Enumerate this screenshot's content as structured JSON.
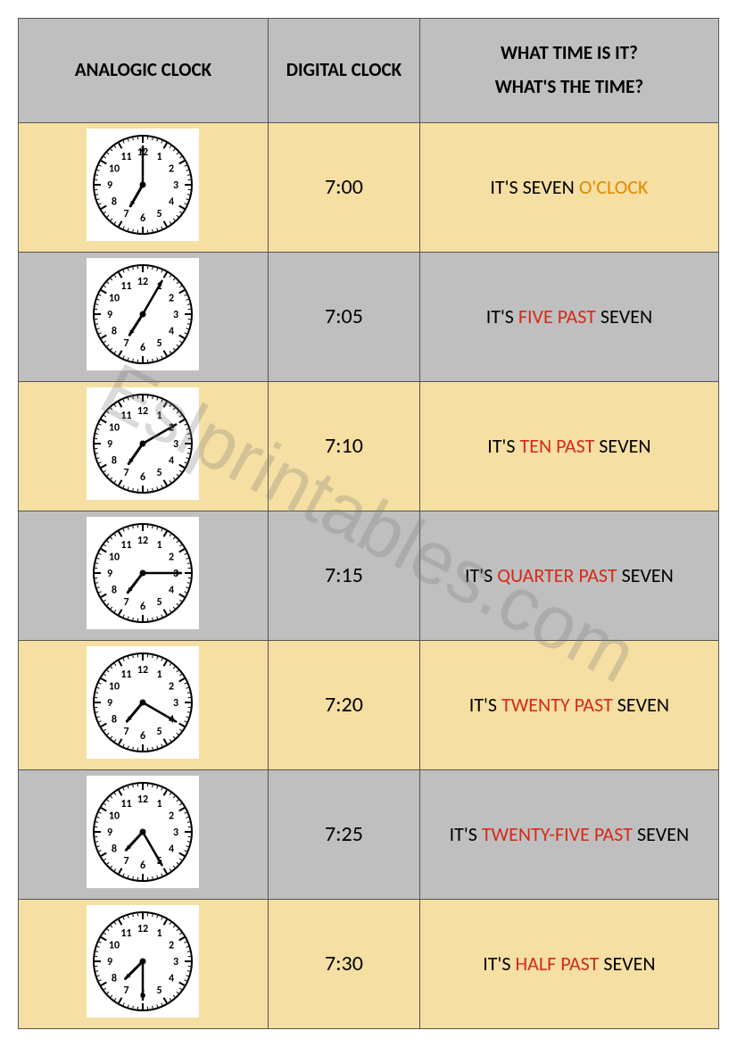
{
  "watermark": "Eslprintables.com",
  "headers": {
    "analog": "ANALOGIC CLOCK",
    "digital": "DIGITAL CLOCK",
    "text_line1": "WHAT TIME IS IT?",
    "text_line2": "WHAT'S THE TIME?"
  },
  "clock_style": {
    "face_fill": "#ffffff",
    "face_stroke": "#000000",
    "tick_color": "#000000",
    "number_color": "#000000",
    "hand_color": "#000000",
    "size": 118
  },
  "row_colors": {
    "yellow": "#f6dfa2",
    "grey": "#bfbfbf"
  },
  "rows": [
    {
      "bg": "yellow",
      "hour": 7,
      "minute": 0,
      "digital": "7:00",
      "phrase": [
        {
          "t": "IT'S SEVEN ",
          "c": "#000000"
        },
        {
          "t": "O'CLOCK",
          "c": "#e08a00"
        }
      ]
    },
    {
      "bg": "grey",
      "hour": 7,
      "minute": 5,
      "digital": "7:05",
      "phrase": [
        {
          "t": "IT'S ",
          "c": "#000000"
        },
        {
          "t": "FIVE PAST",
          "c": "#d52a1a"
        },
        {
          "t": " SEVEN",
          "c": "#000000"
        }
      ]
    },
    {
      "bg": "yellow",
      "hour": 7,
      "minute": 10,
      "digital": "7:10",
      "phrase": [
        {
          "t": "IT'S ",
          "c": "#000000"
        },
        {
          "t": "TEN PAST",
          "c": "#d52a1a"
        },
        {
          "t": " SEVEN",
          "c": "#000000"
        }
      ]
    },
    {
      "bg": "grey",
      "hour": 7,
      "minute": 15,
      "digital": "7:15",
      "phrase": [
        {
          "t": "IT'S ",
          "c": "#000000"
        },
        {
          "t": "QUARTER PAST",
          "c": "#d52a1a"
        },
        {
          "t": " SEVEN",
          "c": "#000000"
        }
      ]
    },
    {
      "bg": "yellow",
      "hour": 7,
      "minute": 20,
      "digital": "7:20",
      "phrase": [
        {
          "t": "IT'S ",
          "c": "#000000"
        },
        {
          "t": "TWENTY PAST",
          "c": "#d52a1a"
        },
        {
          "t": " SEVEN",
          "c": "#000000"
        }
      ]
    },
    {
      "bg": "grey",
      "hour": 7,
      "minute": 25,
      "digital": "7:25",
      "phrase": [
        {
          "t": "IT'S ",
          "c": "#000000"
        },
        {
          "t": "TWENTY-FIVE PAST",
          "c": "#d52a1a"
        },
        {
          "t": " SEVEN",
          "c": "#000000"
        }
      ]
    },
    {
      "bg": "yellow",
      "hour": 7,
      "minute": 30,
      "digital": "7:30",
      "phrase": [
        {
          "t": "IT'S ",
          "c": "#000000"
        },
        {
          "t": "HALF PAST",
          "c": "#d52a1a"
        },
        {
          "t": " SEVEN",
          "c": "#000000"
        }
      ]
    }
  ]
}
